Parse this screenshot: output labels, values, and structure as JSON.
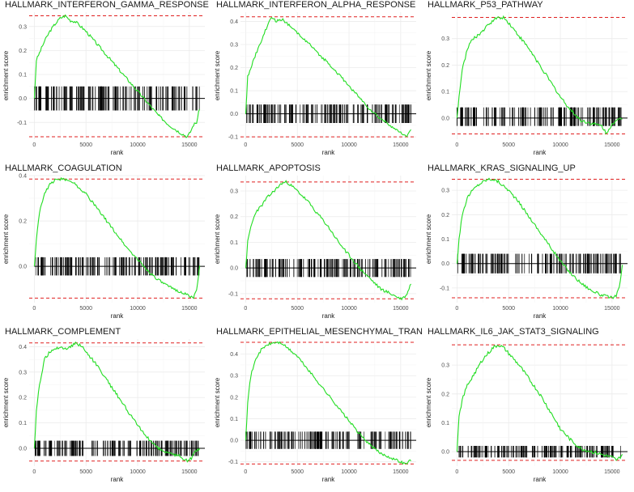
{
  "chart_data": [
    {
      "type": "line",
      "title": "HALLMARK_INTERFERON_GAMMA_RESPONSE",
      "xlabel": "rank",
      "ylabel": "enrichment score",
      "xlim": [
        -500,
        16500
      ],
      "ylim": [
        -0.17,
        0.36
      ],
      "xticks": [
        0,
        5000,
        10000,
        15000
      ],
      "yticks": [
        -0.1,
        0.0,
        0.1,
        0.2,
        0.3
      ],
      "ytick_labels": [
        "-0.1",
        "0.0",
        "0.1",
        "0.2",
        "0.3"
      ],
      "max_es": 0.345,
      "min_es": -0.16,
      "barcode": [
        -0.05,
        0.05
      ],
      "series": [
        {
          "x": [
            0,
            200,
            500,
            1000,
            1500,
            2000,
            2500,
            3000,
            3500,
            4000,
            5000,
            6000,
            7000,
            8000,
            9000,
            10000,
            11000,
            12000,
            13000,
            14000,
            14800,
            15100,
            15400,
            15700,
            16000
          ],
          "y": [
            0,
            0.16,
            0.19,
            0.24,
            0.28,
            0.31,
            0.335,
            0.345,
            0.325,
            0.32,
            0.28,
            0.23,
            0.18,
            0.13,
            0.08,
            0.03,
            -0.02,
            -0.07,
            -0.11,
            -0.14,
            -0.16,
            -0.14,
            -0.11,
            -0.1,
            -0.04
          ]
        }
      ]
    },
    {
      "type": "line",
      "title": "HALLMARK_INTERFERON_ALPHA_RESPONSE",
      "xlabel": "rank",
      "ylabel": "enrichment score",
      "xlim": [
        -500,
        16500
      ],
      "ylim": [
        -0.11,
        0.44
      ],
      "xticks": [
        0,
        5000,
        10000,
        15000
      ],
      "yticks": [
        -0.1,
        0.0,
        0.1,
        0.2,
        0.3,
        0.4
      ],
      "ytick_labels": [
        "-0.1",
        "0.0",
        "0.1",
        "0.2",
        "0.3",
        "0.4"
      ],
      "max_es": 0.42,
      "min_es": -0.1,
      "barcode": [
        -0.04,
        0.04
      ],
      "series": [
        {
          "x": [
            0,
            200,
            500,
            1000,
            1500,
            2000,
            2500,
            3000,
            3500,
            4000,
            5000,
            6000,
            7000,
            8000,
            9000,
            10000,
            11000,
            12000,
            13000,
            14000,
            14500,
            15000,
            15500,
            16000
          ],
          "y": [
            0,
            0.16,
            0.2,
            0.26,
            0.31,
            0.37,
            0.42,
            0.4,
            0.41,
            0.39,
            0.35,
            0.31,
            0.26,
            0.22,
            0.17,
            0.12,
            0.07,
            0.02,
            -0.02,
            -0.05,
            -0.07,
            -0.08,
            -0.1,
            -0.07
          ]
        }
      ]
    },
    {
      "type": "line",
      "title": "HALLMARK_P53_PATHWAY",
      "xlabel": "rank",
      "ylabel": "enrichment score",
      "xlim": [
        -500,
        16500
      ],
      "ylim": [
        -0.08,
        0.4
      ],
      "xticks": [
        0,
        5000,
        10000,
        15000
      ],
      "yticks": [
        0.0,
        0.1,
        0.2,
        0.3
      ],
      "ytick_labels": [
        "0.0",
        "0.1",
        "0.2",
        "0.3"
      ],
      "max_es": 0.38,
      "min_es": -0.06,
      "barcode": [
        -0.03,
        0.04
      ],
      "series": [
        {
          "x": [
            0,
            200,
            500,
            1000,
            1500,
            2000,
            2500,
            3000,
            3500,
            4000,
            4500,
            5000,
            6000,
            7000,
            8000,
            9000,
            10000,
            11000,
            12000,
            13000,
            14000,
            14500,
            15000,
            15500,
            16000
          ],
          "y": [
            0,
            0.08,
            0.18,
            0.26,
            0.3,
            0.31,
            0.33,
            0.35,
            0.37,
            0.38,
            0.38,
            0.36,
            0.31,
            0.26,
            0.2,
            0.14,
            0.08,
            0.03,
            -0.01,
            -0.02,
            -0.03,
            -0.06,
            -0.02,
            -0.01,
            0
          ]
        }
      ]
    },
    {
      "type": "line",
      "title": "HALLMARK_COAGULATION",
      "xlabel": "rank",
      "ylabel": "enrichment score",
      "xlim": [
        -500,
        16500
      ],
      "ylim": [
        -0.16,
        0.4
      ],
      "xticks": [
        0,
        5000,
        10000,
        15000
      ],
      "yticks": [
        0.0,
        0.2,
        0.4
      ],
      "ytick_labels": [
        "0.0",
        "0.2",
        "0.4"
      ],
      "max_es": 0.385,
      "min_es": -0.14,
      "barcode": [
        -0.04,
        0.04
      ],
      "series": [
        {
          "x": [
            0,
            200,
            500,
            1000,
            1500,
            2000,
            2500,
            3000,
            3500,
            4000,
            5000,
            6000,
            7000,
            8000,
            9000,
            10000,
            11000,
            12000,
            13000,
            14000,
            15000,
            15400,
            15700,
            16000
          ],
          "y": [
            0,
            0.12,
            0.24,
            0.32,
            0.36,
            0.38,
            0.385,
            0.38,
            0.38,
            0.36,
            0.32,
            0.26,
            0.2,
            0.14,
            0.08,
            0.03,
            -0.02,
            -0.06,
            -0.09,
            -0.11,
            -0.13,
            -0.14,
            -0.1,
            0
          ]
        }
      ]
    },
    {
      "type": "line",
      "title": "HALLMARK_APOPTOSIS",
      "xlabel": "rank",
      "ylabel": "enrichment score",
      "xlim": [
        -500,
        16500
      ],
      "ylim": [
        -0.135,
        0.36
      ],
      "xticks": [
        0,
        5000,
        10000,
        15000
      ],
      "yticks": [
        -0.1,
        0.0,
        0.1,
        0.2,
        0.3
      ],
      "ytick_labels": [
        "-0.1",
        "0.0",
        "0.1",
        "0.2",
        "0.3"
      ],
      "max_es": 0.335,
      "min_es": -0.12,
      "barcode": [
        -0.035,
        0.035
      ],
      "series": [
        {
          "x": [
            0,
            200,
            500,
            1000,
            1500,
            2000,
            2500,
            3000,
            3500,
            4000,
            5000,
            6000,
            7000,
            8000,
            9000,
            10000,
            11000,
            12000,
            13000,
            14000,
            14500,
            15000,
            15500,
            16000
          ],
          "y": [
            0,
            0.1,
            0.16,
            0.22,
            0.24,
            0.27,
            0.29,
            0.31,
            0.33,
            0.335,
            0.3,
            0.26,
            0.21,
            0.16,
            0.1,
            0.05,
            0,
            -0.04,
            -0.08,
            -0.1,
            -0.11,
            -0.12,
            -0.11,
            -0.06
          ]
        }
      ]
    },
    {
      "type": "line",
      "title": "HALLMARK_KRAS_SIGNALING_UP",
      "xlabel": "rank",
      "ylabel": "enrichment score",
      "xlim": [
        -500,
        16500
      ],
      "ylim": [
        -0.16,
        0.36
      ],
      "xticks": [
        0,
        5000,
        10000,
        15000
      ],
      "yticks": [
        -0.1,
        0.0,
        0.1,
        0.2,
        0.3
      ],
      "ytick_labels": [
        "-0.1",
        "0.0",
        "0.1",
        "0.2",
        "0.3"
      ],
      "max_es": 0.345,
      "min_es": -0.14,
      "barcode": [
        -0.04,
        0.04
      ],
      "series": [
        {
          "x": [
            0,
            200,
            500,
            1000,
            1500,
            2000,
            2500,
            3000,
            3500,
            4000,
            5000,
            6000,
            7000,
            8000,
            9000,
            10000,
            11000,
            12000,
            13000,
            14000,
            15000,
            15400,
            15700,
            16000
          ],
          "y": [
            0,
            0.1,
            0.2,
            0.27,
            0.3,
            0.32,
            0.335,
            0.345,
            0.345,
            0.335,
            0.3,
            0.25,
            0.19,
            0.13,
            0.07,
            0.01,
            -0.04,
            -0.08,
            -0.11,
            -0.13,
            -0.14,
            -0.13,
            -0.1,
            -0.01
          ]
        }
      ]
    },
    {
      "type": "line",
      "title": "HALLMARK_COMPLEMENT",
      "xlabel": "rank",
      "ylabel": "enrichment score",
      "xlim": [
        -500,
        16500
      ],
      "ylim": [
        -0.07,
        0.43
      ],
      "xticks": [
        0,
        5000,
        10000,
        15000
      ],
      "yticks": [
        0.0,
        0.1,
        0.2,
        0.3,
        0.4
      ],
      "ytick_labels": [
        "0.0",
        "0.1",
        "0.2",
        "0.3",
        "0.4"
      ],
      "max_es": 0.415,
      "min_es": -0.05,
      "barcode": [
        -0.03,
        0.03
      ],
      "series": [
        {
          "x": [
            0,
            200,
            500,
            1000,
            1500,
            2000,
            2500,
            3000,
            3500,
            4000,
            4500,
            5000,
            6000,
            7000,
            8000,
            9000,
            10000,
            11000,
            12000,
            13000,
            14000,
            14800,
            15200,
            15600,
            16000
          ],
          "y": [
            0,
            0.15,
            0.25,
            0.35,
            0.38,
            0.39,
            0.4,
            0.39,
            0.4,
            0.415,
            0.405,
            0.38,
            0.33,
            0.27,
            0.21,
            0.15,
            0.09,
            0.04,
            0,
            -0.02,
            -0.03,
            -0.05,
            -0.04,
            -0.01,
            0
          ]
        }
      ]
    },
    {
      "type": "line",
      "title": "HALLMARK_EPITHELIAL_MESENCHYMAL_TRANSITION",
      "xlabel": "rank",
      "ylabel": "enrichment score",
      "xlim": [
        -500,
        16500
      ],
      "ylim": [
        -0.12,
        0.47
      ],
      "xticks": [
        0,
        5000,
        10000,
        15000
      ],
      "yticks": [
        -0.1,
        0.0,
        0.1,
        0.2,
        0.3,
        0.4
      ],
      "ytick_labels": [
        "-0.1",
        "0.0",
        "0.1",
        "0.2",
        "0.3",
        "0.4"
      ],
      "max_es": 0.455,
      "min_es": -0.11,
      "barcode": [
        -0.04,
        0.04
      ],
      "series": [
        {
          "x": [
            0,
            200,
            500,
            1000,
            1500,
            2000,
            2500,
            3000,
            3500,
            4000,
            5000,
            6000,
            7000,
            8000,
            9000,
            10000,
            11000,
            12000,
            13000,
            14000,
            15000,
            15500,
            16000
          ],
          "y": [
            0,
            0.18,
            0.3,
            0.38,
            0.42,
            0.44,
            0.45,
            0.455,
            0.45,
            0.43,
            0.39,
            0.33,
            0.27,
            0.21,
            0.15,
            0.09,
            0.03,
            -0.02,
            -0.06,
            -0.08,
            -0.1,
            -0.11,
            -0.09
          ]
        }
      ]
    },
    {
      "type": "line",
      "title": "HALLMARK_IL6_JAK_STAT3_SIGNALING",
      "xlabel": "rank",
      "ylabel": "enrichment score",
      "xlim": [
        -500,
        16500
      ],
      "ylim": [
        -0.05,
        0.39
      ],
      "xticks": [
        0,
        5000,
        10000,
        15000
      ],
      "yticks": [
        0.0,
        0.1,
        0.2,
        0.3
      ],
      "ytick_labels": [
        "0.0",
        "0.1",
        "0.2",
        "0.3"
      ],
      "max_es": 0.37,
      "min_es": -0.03,
      "barcode": [
        -0.02,
        0.02
      ],
      "series": [
        {
          "x": [
            0,
            200,
            500,
            1000,
            1500,
            2000,
            2500,
            3000,
            3500,
            4000,
            4500,
            5000,
            6000,
            7000,
            8000,
            9000,
            10000,
            11000,
            12000,
            13000,
            14000,
            15000,
            15500,
            16000
          ],
          "y": [
            0,
            0.12,
            0.18,
            0.23,
            0.26,
            0.29,
            0.32,
            0.34,
            0.36,
            0.37,
            0.36,
            0.34,
            0.3,
            0.25,
            0.2,
            0.14,
            0.08,
            0.04,
            0.01,
            0,
            -0.01,
            -0.02,
            -0.03,
            -0.01
          ]
        }
      ]
    }
  ]
}
